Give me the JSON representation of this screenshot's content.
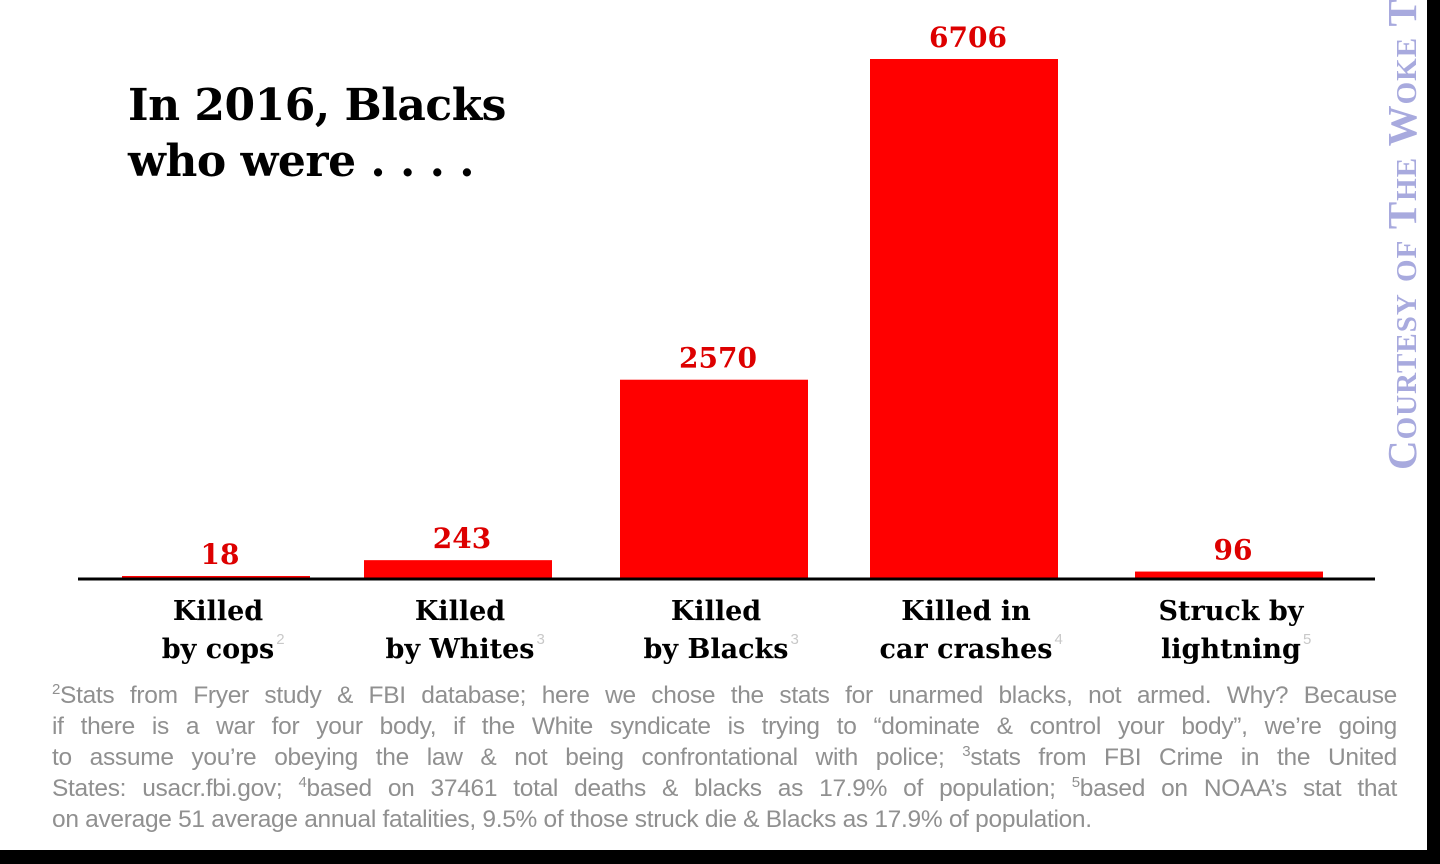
{
  "title_lines": [
    "In 2016, Blacks",
    "who were . . . ."
  ],
  "watermark": "Courtesy of The Woke Temple",
  "colors": {
    "bar": "#ff0000",
    "value_label": "#dd0000",
    "axis": "#000000",
    "footnote": "#909090",
    "watermark": "#a8aade"
  },
  "chart_data": {
    "type": "bar",
    "title": "In 2016, Blacks who were . . . .",
    "xlabel": "",
    "ylabel": "",
    "ylim": [
      0,
      6706
    ],
    "grid": false,
    "categories": [
      {
        "lines": [
          "Killed",
          "by cops"
        ],
        "sup": "2"
      },
      {
        "lines": [
          "Killed",
          "by Whites"
        ],
        "sup": "3"
      },
      {
        "lines": [
          "Killed",
          "by Blacks"
        ],
        "sup": "3"
      },
      {
        "lines": [
          "Killed in",
          "car crashes"
        ],
        "sup": "4"
      },
      {
        "lines": [
          "Struck by",
          "lightning"
        ],
        "sup": "5"
      }
    ],
    "values": [
      18,
      243,
      2570,
      6706,
      96
    ],
    "value_labels": [
      "18",
      "243",
      "2570",
      "6706",
      "96"
    ]
  },
  "footnote": {
    "lines": [
      [
        {
          "sup": "2"
        },
        {
          "t": "Stats from Fryer study & FBI database; here we chose the stats for unarmed blacks, not armed. Why? Because"
        }
      ],
      [
        {
          "t": "if there is a war for your body, if the White syndicate is trying to “dominate & control your body”, we’re going"
        }
      ],
      [
        {
          "t": "to assume you’re obeying the law & not being confrontational with police; "
        },
        {
          "sup": "3"
        },
        {
          "t": "stats from FBI Crime in the United"
        }
      ],
      [
        {
          "t": "States: usacr.fbi.gov; "
        },
        {
          "sup": "4"
        },
        {
          "t": "based on 37461 total deaths & blacks as 17.9% of population; "
        },
        {
          "sup": "5"
        },
        {
          "t": "based on NOAA’s stat that"
        }
      ],
      [
        {
          "t": "on average 51 average annual fatalities, 9.5% of those struck die & Blacks as 17.9% of population."
        }
      ]
    ]
  }
}
